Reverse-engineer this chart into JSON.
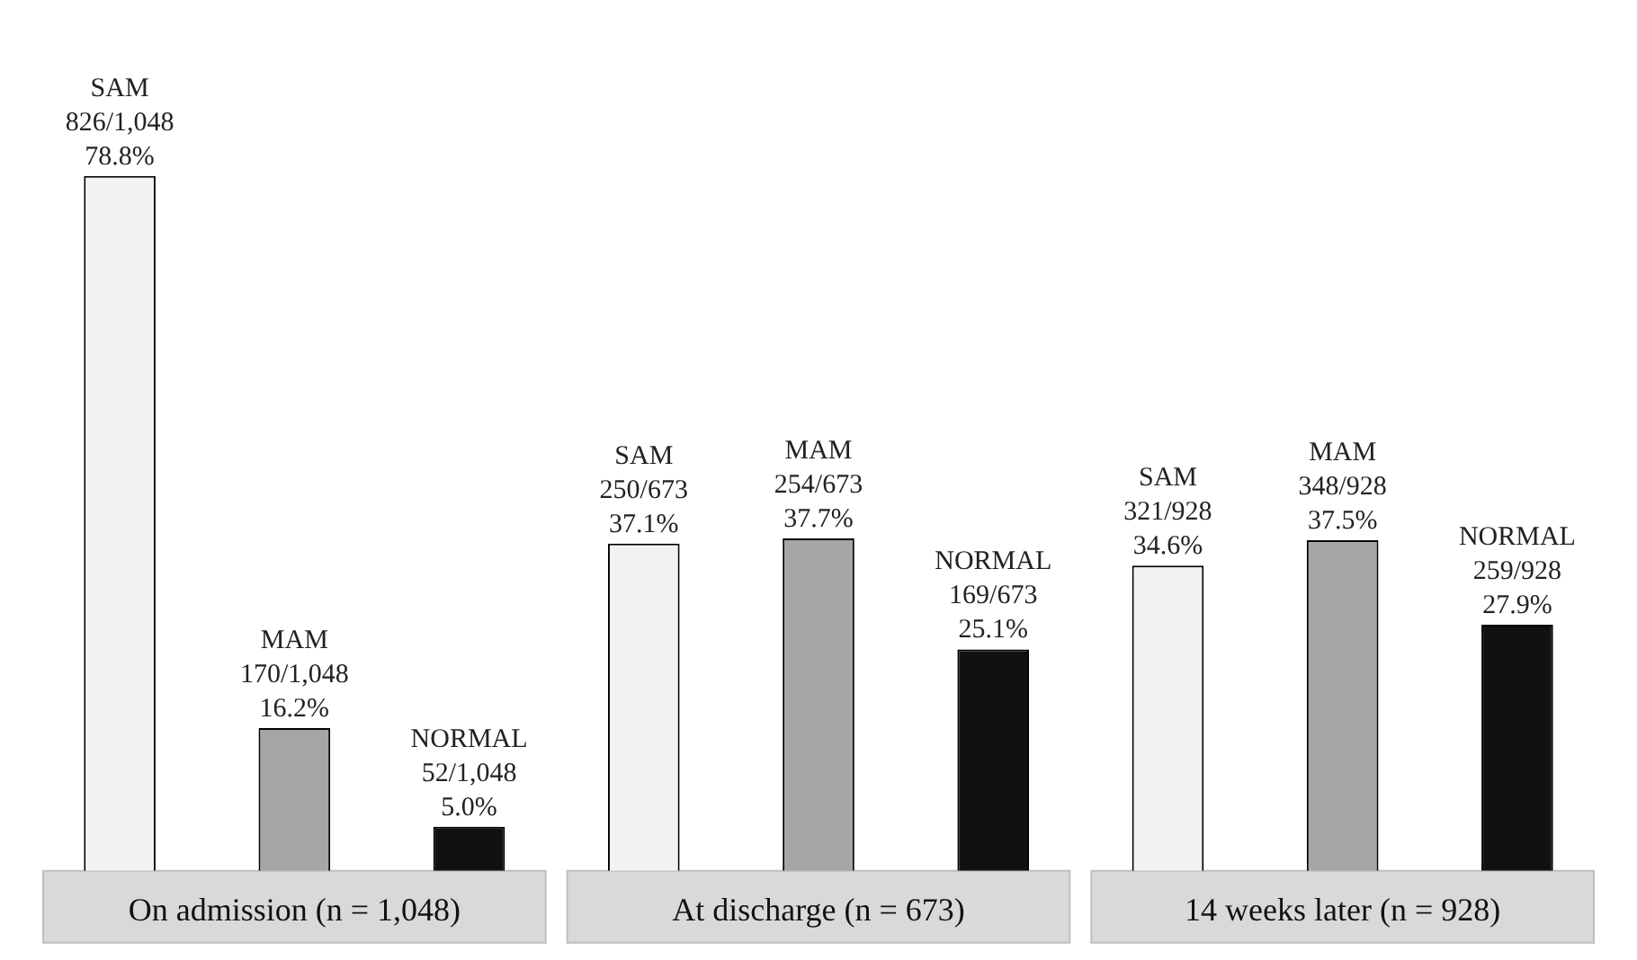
{
  "chart_data": {
    "type": "bar",
    "categories": [
      "On admission (n = 1,048)",
      "At discharge (n = 673)",
      "14 weeks later (n = 928)"
    ],
    "series": [
      {
        "name": "SAM",
        "color": "#f2f2f2",
        "values": [
          78.8,
          37.1,
          34.6
        ],
        "value_labels": [
          "826/1,048 78.8%",
          "250/673 37.1%",
          "321/928 34.6%"
        ]
      },
      {
        "name": "MAM",
        "color": "#a6a6a6",
        "values": [
          16.2,
          37.7,
          37.5
        ],
        "value_labels": [
          "170/1,048 16.2%",
          "254/673 37.7%",
          "348/928 37.5%"
        ]
      },
      {
        "name": "NORMAL",
        "color": "#111111",
        "values": [
          5.0,
          25.1,
          27.9
        ],
        "value_labels": [
          "52/1,048 5.0%",
          "169/673 25.1%",
          "259/928 27.9%"
        ]
      }
    ],
    "tick_labels": "x",
    "grid": false,
    "legend": false
  }
}
